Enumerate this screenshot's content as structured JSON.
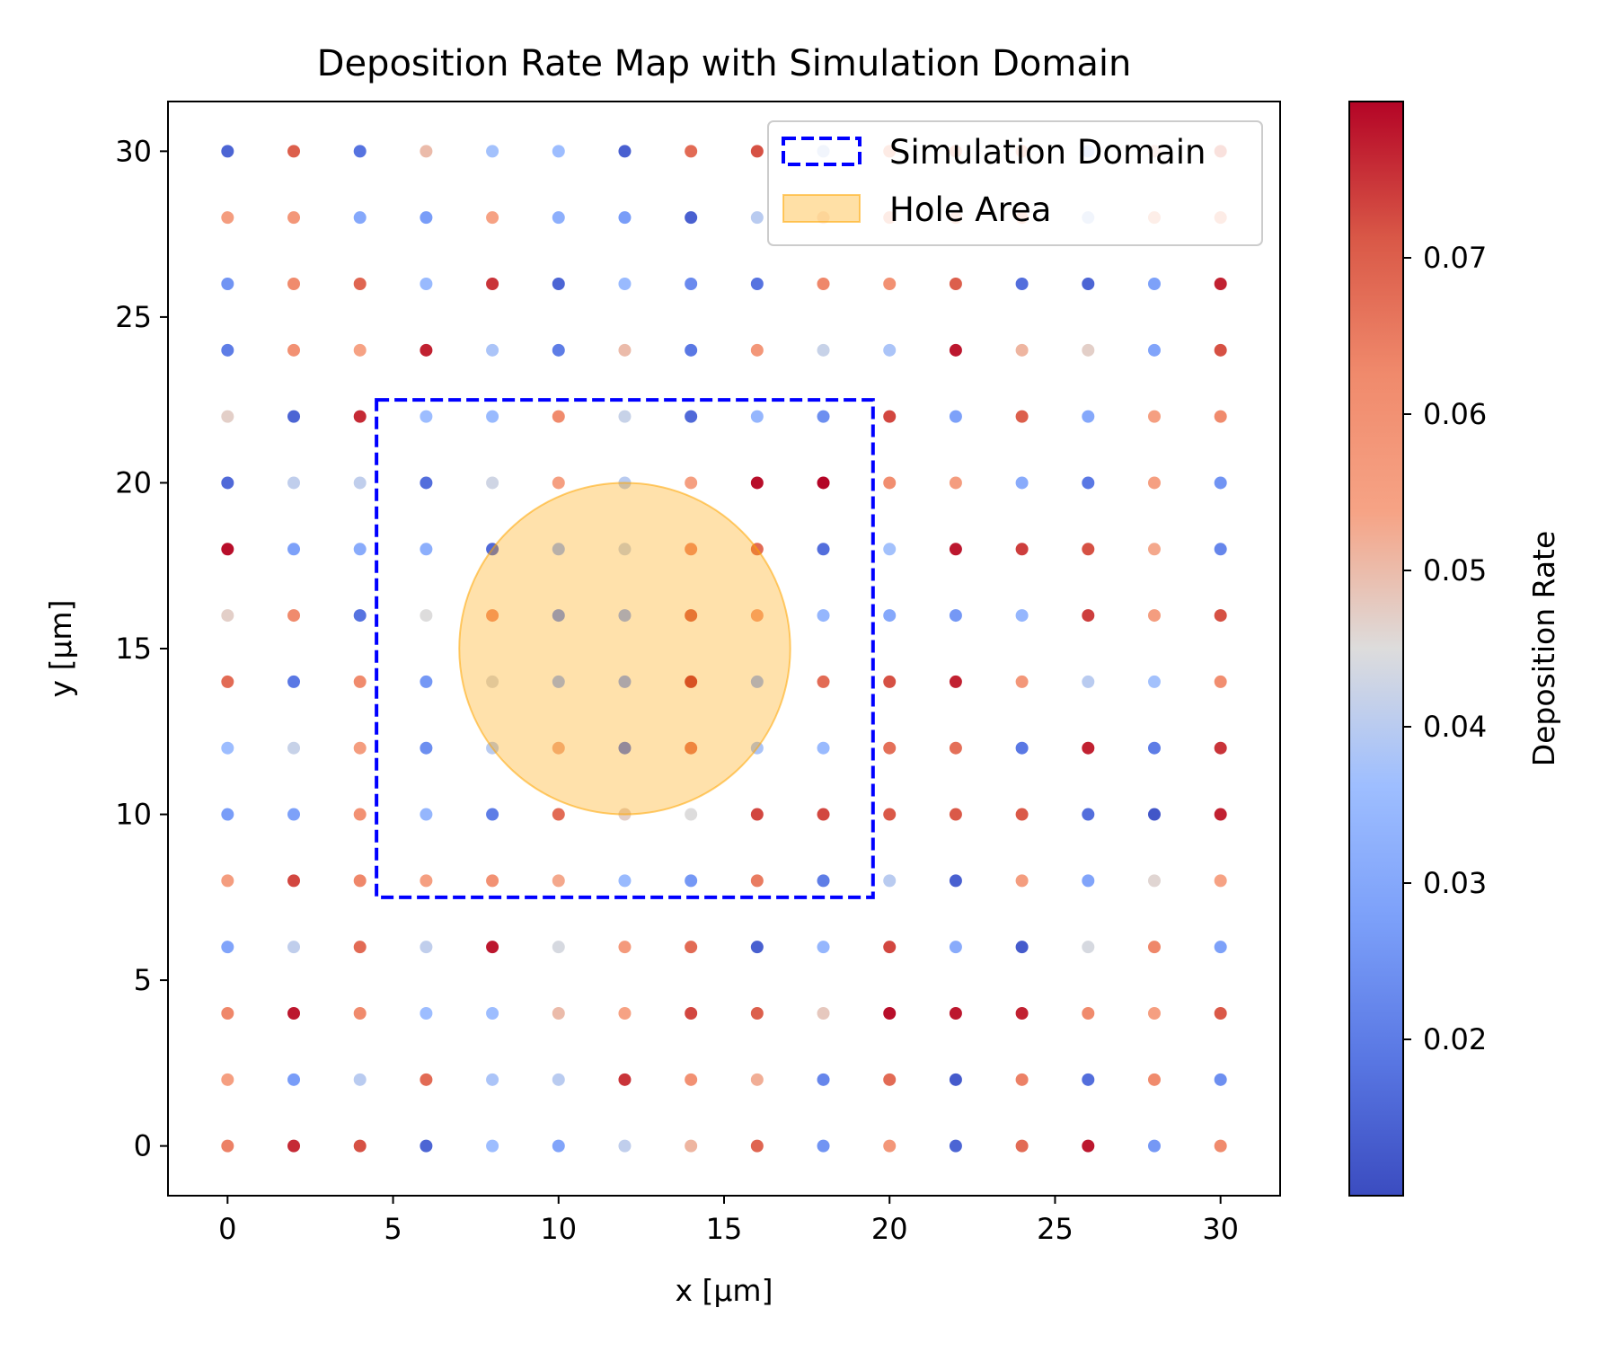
{
  "chart_data": {
    "type": "scatter",
    "title": "Deposition Rate Map with Simulation Domain",
    "xlabel": "x [µm]",
    "ylabel": "y [µm]",
    "xlim": [
      -1.8,
      31.8
    ],
    "ylim": [
      -1.5,
      31.5
    ],
    "xticks": [
      0,
      5,
      10,
      15,
      20,
      25,
      30
    ],
    "yticks": [
      0,
      5,
      10,
      15,
      20,
      25,
      30
    ],
    "grid": false,
    "legend_position": "top-right",
    "legend": [
      {
        "label": "Simulation Domain",
        "style": "dashed-box",
        "color": "#0000ff"
      },
      {
        "label": "Hole Area",
        "style": "filled-patch",
        "color": "#ffa500"
      }
    ],
    "colorbar": {
      "label": "Deposition Rate",
      "colormap": "coolwarm",
      "range": [
        0.01,
        0.08
      ],
      "ticks": [
        0.02,
        0.03,
        0.04,
        0.05,
        0.06,
        0.07
      ],
      "tick_labels": [
        "0.02",
        "0.03",
        "0.04",
        "0.05",
        "0.06",
        "0.07"
      ]
    },
    "x": [
      0,
      2,
      4,
      6,
      8,
      10,
      12,
      14,
      16,
      18,
      20,
      22,
      24,
      26,
      28,
      30
    ],
    "y": [
      0,
      2,
      4,
      6,
      8,
      10,
      12,
      14,
      16,
      18,
      20,
      22,
      24,
      26,
      28,
      30
    ],
    "rates_rows_by_y": [
      [
        0.064,
        0.076,
        0.072,
        0.015,
        0.036,
        0.029,
        0.041,
        0.051,
        0.069,
        0.025,
        0.058,
        0.015,
        0.068,
        0.078,
        0.026,
        0.062
      ],
      [
        0.055,
        0.027,
        0.04,
        0.068,
        0.038,
        0.04,
        0.075,
        0.06,
        0.052,
        0.022,
        0.068,
        0.013,
        0.064,
        0.017,
        0.062,
        0.024
      ],
      [
        0.063,
        0.078,
        0.062,
        0.036,
        0.036,
        0.05,
        0.054,
        0.073,
        0.07,
        0.048,
        0.079,
        0.078,
        0.077,
        0.062,
        0.055,
        0.071
      ],
      [
        0.029,
        0.041,
        0.068,
        0.041,
        0.078,
        0.044,
        0.057,
        0.068,
        0.014,
        0.034,
        0.073,
        0.031,
        0.013,
        0.044,
        0.063,
        0.028
      ],
      [
        0.056,
        0.073,
        0.063,
        0.055,
        0.06,
        0.053,
        0.035,
        0.026,
        0.065,
        0.02,
        0.04,
        0.014,
        0.056,
        0.029,
        0.046,
        0.054
      ],
      [
        0.027,
        0.028,
        0.06,
        0.034,
        0.02,
        0.068,
        0.047,
        0.045,
        0.073,
        0.073,
        0.071,
        0.071,
        0.071,
        0.017,
        0.012,
        0.077
      ],
      [
        0.036,
        0.042,
        0.056,
        0.024,
        0.04,
        0.052,
        0.02,
        0.066,
        0.038,
        0.035,
        0.067,
        0.067,
        0.019,
        0.077,
        0.02,
        0.075
      ],
      [
        0.068,
        0.019,
        0.062,
        0.026,
        0.044,
        0.034,
        0.03,
        0.076,
        0.034,
        0.068,
        0.072,
        0.077,
        0.058,
        0.04,
        0.037,
        0.061
      ],
      [
        0.047,
        0.062,
        0.018,
        0.045,
        0.06,
        0.025,
        0.032,
        0.07,
        0.055,
        0.034,
        0.03,
        0.026,
        0.034,
        0.074,
        0.056,
        0.072
      ],
      [
        0.079,
        0.028,
        0.031,
        0.032,
        0.016,
        0.034,
        0.042,
        0.062,
        0.068,
        0.017,
        0.037,
        0.078,
        0.074,
        0.072,
        0.053,
        0.022
      ],
      [
        0.016,
        0.041,
        0.041,
        0.017,
        0.043,
        0.055,
        0.04,
        0.055,
        0.079,
        0.08,
        0.061,
        0.056,
        0.031,
        0.019,
        0.055,
        0.025
      ],
      [
        0.047,
        0.015,
        0.076,
        0.036,
        0.035,
        0.062,
        0.042,
        0.016,
        0.034,
        0.024,
        0.073,
        0.028,
        0.07,
        0.03,
        0.055,
        0.062
      ],
      [
        0.02,
        0.06,
        0.054,
        0.077,
        0.038,
        0.02,
        0.05,
        0.019,
        0.058,
        0.042,
        0.038,
        0.078,
        0.051,
        0.047,
        0.029,
        0.072
      ],
      [
        0.025,
        0.062,
        0.069,
        0.035,
        0.075,
        0.015,
        0.035,
        0.023,
        0.018,
        0.063,
        0.06,
        0.07,
        0.017,
        0.015,
        0.028,
        0.077
      ],
      [
        0.056,
        0.058,
        0.03,
        0.027,
        0.054,
        0.032,
        0.027,
        0.014,
        0.04,
        0.052,
        0.055,
        0.053,
        0.054,
        0.04,
        0.053,
        0.055
      ],
      [
        0.015,
        0.07,
        0.018,
        0.05,
        0.037,
        0.036,
        0.014,
        0.068,
        0.072,
        0.04,
        0.057,
        0.058,
        0.056,
        0.038,
        0.05,
        0.068
      ]
    ],
    "simulation_domain": {
      "x": [
        4.5,
        19.5
      ],
      "y": [
        7.5,
        22.5
      ]
    },
    "hole_area": {
      "center": [
        12,
        15
      ],
      "radius": 5
    }
  }
}
